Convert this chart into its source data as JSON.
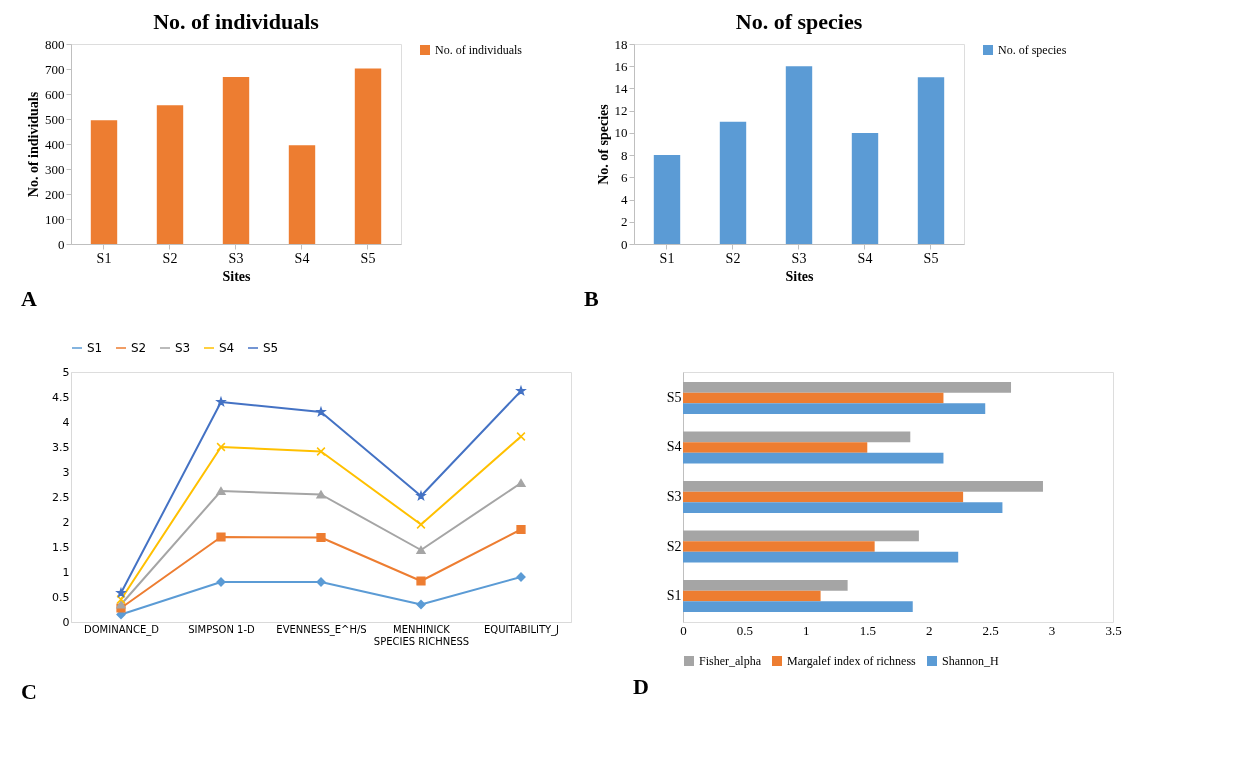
{
  "chart_data": [
    {
      "type": "bar",
      "title": "No. of individuals",
      "xlabel": "Sites",
      "ylabel": "No. of individuals",
      "categories": [
        "S1",
        "S2",
        "S3",
        "S4",
        "S5"
      ],
      "series": [
        {
          "name": "No. of individuals",
          "color": "#ed7d31",
          "values": [
            495,
            555,
            668,
            395,
            702
          ]
        }
      ],
      "ylim": [
        0,
        800
      ],
      "yticks": [
        0,
        100,
        200,
        300,
        400,
        500,
        600,
        700,
        800
      ],
      "grid": false,
      "legend": "right",
      "annotations": [
        "A"
      ]
    },
    {
      "type": "bar",
      "title": "No. of species",
      "xlabel": "Sites",
      "ylabel": "No. of species",
      "categories": [
        "S1",
        "S2",
        "S3",
        "S4",
        "S5"
      ],
      "series": [
        {
          "name": "No. of species",
          "color": "#5b9bd5",
          "values": [
            8,
            11,
            16,
            10,
            15
          ]
        }
      ],
      "ylim": [
        0,
        18
      ],
      "yticks": [
        0,
        2,
        4,
        6,
        8,
        10,
        12,
        14,
        16,
        18
      ],
      "grid": false,
      "legend": "right",
      "annotations": [
        "B"
      ]
    },
    {
      "type": "line",
      "categories": [
        "DOMINANCE_D",
        "SIMPSON 1-D",
        "EVENNESS_E^H/S",
        "MENHINICK SPECIES RICHNESS",
        "EQUITABILITY_J"
      ],
      "series": [
        {
          "name": "S1",
          "color": "#5b9bd5",
          "marker": "diamond",
          "values": [
            0.15,
            0.8,
            0.8,
            0.35,
            0.9
          ]
        },
        {
          "name": "S2",
          "color": "#ed7d31",
          "marker": "square",
          "values": [
            0.28,
            1.7,
            1.69,
            0.82,
            1.85
          ]
        },
        {
          "name": "S3",
          "color": "#a5a5a5",
          "marker": "triangle",
          "values": [
            0.35,
            2.62,
            2.55,
            1.44,
            2.78
          ]
        },
        {
          "name": "S4",
          "color": "#ffc000",
          "marker": "cross",
          "values": [
            0.45,
            3.5,
            3.41,
            1.95,
            3.71
          ]
        },
        {
          "name": "S5",
          "color": "#4472c4",
          "marker": "star",
          "values": [
            0.58,
            4.4,
            4.2,
            2.52,
            4.62
          ]
        }
      ],
      "ylim": [
        0,
        5
      ],
      "yticks": [
        0,
        0.5,
        1,
        1.5,
        2,
        2.5,
        3,
        3.5,
        4,
        4.5,
        5
      ],
      "grid": false,
      "legend": "top",
      "annotations": [
        "C"
      ]
    },
    {
      "type": "bar",
      "orientation": "horizontal",
      "categories": [
        "S5",
        "S4",
        "S3",
        "S2",
        "S1"
      ],
      "series": [
        {
          "name": "Fisher_alpha",
          "color": "#a5a5a5",
          "values": [
            2.67,
            1.85,
            2.93,
            1.92,
            1.34
          ]
        },
        {
          "name": "Margalef index of richness",
          "color": "#ed7d31",
          "values": [
            2.12,
            1.5,
            2.28,
            1.56,
            1.12
          ]
        },
        {
          "name": "Shannon_H",
          "color": "#5b9bd5",
          "values": [
            2.46,
            2.12,
            2.6,
            2.24,
            1.87
          ]
        }
      ],
      "xlim": [
        0,
        3.5
      ],
      "xticks": [
        0,
        0.5,
        1,
        1.5,
        2,
        2.5,
        3,
        3.5
      ],
      "grid": false,
      "legend": "bottom",
      "annotations": [
        "D"
      ]
    }
  ]
}
